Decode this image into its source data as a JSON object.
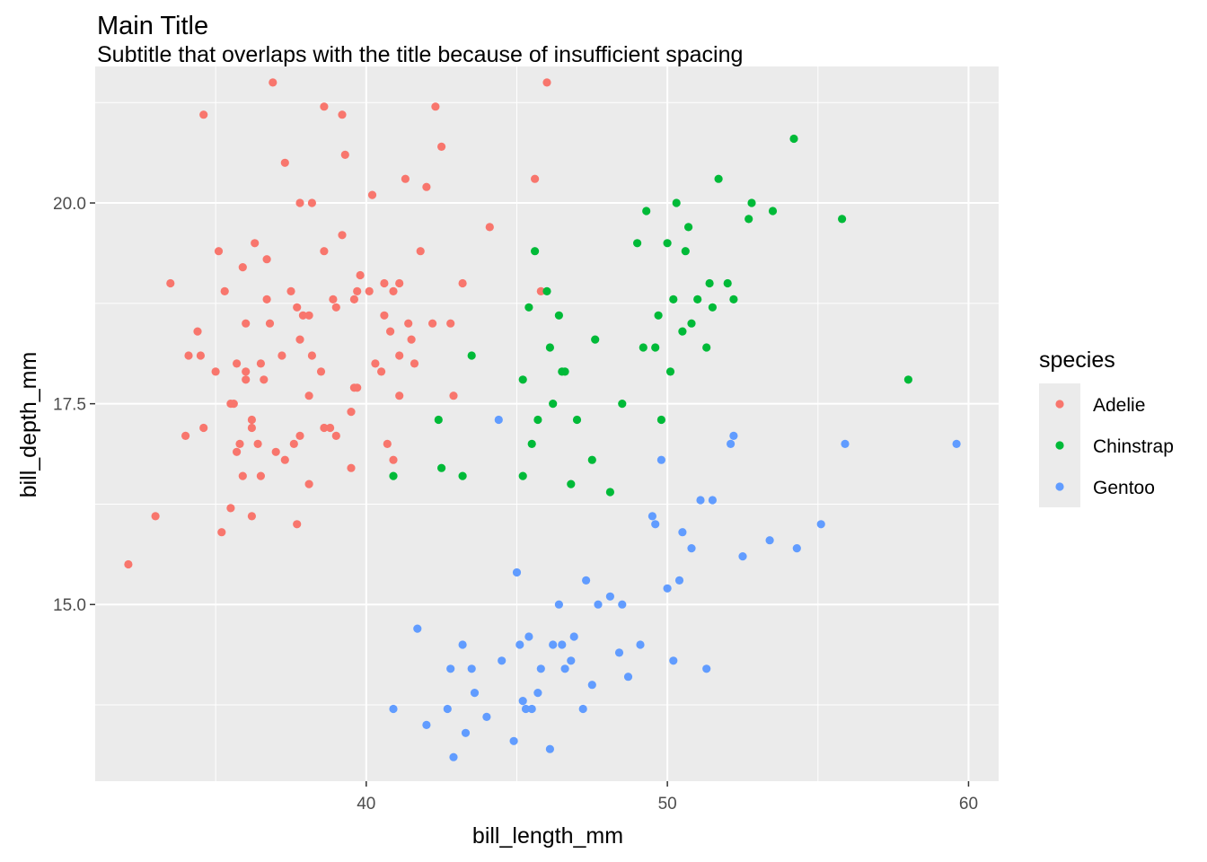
{
  "chart_data": {
    "type": "scatter",
    "title": "Main Title",
    "subtitle": "Subtitle that overlaps with the title because of insufficient spacing",
    "xlabel": "bill_length_mm",
    "ylabel": "bill_depth_mm",
    "xlim": [
      31.0,
      61.0
    ],
    "ylim": [
      12.8,
      21.7
    ],
    "x_ticks": [
      40,
      50,
      60
    ],
    "x_tick_labels": [
      "40",
      "50",
      "60"
    ],
    "y_ticks": [
      15.0,
      17.5,
      20.0
    ],
    "y_tick_labels": [
      "15.0",
      "17.5",
      "20.0"
    ],
    "grid": true,
    "legend": {
      "title": "species",
      "position": "right"
    },
    "series": [
      {
        "name": "Adelie",
        "color": "#F8766D",
        "points": [
          [
            32.1,
            15.5
          ],
          [
            33.0,
            16.1
          ],
          [
            33.5,
            19.0
          ],
          [
            34.0,
            17.1
          ],
          [
            34.1,
            18.1
          ],
          [
            34.4,
            18.4
          ],
          [
            34.5,
            18.1
          ],
          [
            34.6,
            21.1
          ],
          [
            34.6,
            17.2
          ],
          [
            35.0,
            17.9
          ],
          [
            35.1,
            19.4
          ],
          [
            35.2,
            15.9
          ],
          [
            35.3,
            18.9
          ],
          [
            35.5,
            16.2
          ],
          [
            35.5,
            17.5
          ],
          [
            35.6,
            17.5
          ],
          [
            35.7,
            16.9
          ],
          [
            35.7,
            18.0
          ],
          [
            35.8,
            17.0
          ],
          [
            35.9,
            16.6
          ],
          [
            35.9,
            19.2
          ],
          [
            36.0,
            17.8
          ],
          [
            36.0,
            18.5
          ],
          [
            36.0,
            17.9
          ],
          [
            36.2,
            16.1
          ],
          [
            36.2,
            17.2
          ],
          [
            36.2,
            17.3
          ],
          [
            36.3,
            19.5
          ],
          [
            36.4,
            17.0
          ],
          [
            36.5,
            16.6
          ],
          [
            36.5,
            18.0
          ],
          [
            36.6,
            17.8
          ],
          [
            36.7,
            19.3
          ],
          [
            36.7,
            18.8
          ],
          [
            36.8,
            18.5
          ],
          [
            36.9,
            21.5
          ],
          [
            37.0,
            16.9
          ],
          [
            37.2,
            18.1
          ],
          [
            37.3,
            16.8
          ],
          [
            37.3,
            20.5
          ],
          [
            37.5,
            18.9
          ],
          [
            37.6,
            17.0
          ],
          [
            37.7,
            16.0
          ],
          [
            37.7,
            18.7
          ],
          [
            37.8,
            17.1
          ],
          [
            37.8,
            18.3
          ],
          [
            37.8,
            20.0
          ],
          [
            37.9,
            18.6
          ],
          [
            38.1,
            16.5
          ],
          [
            38.1,
            17.6
          ],
          [
            38.1,
            18.6
          ],
          [
            38.2,
            18.1
          ],
          [
            38.2,
            20.0
          ],
          [
            38.5,
            17.9
          ],
          [
            38.6,
            21.2
          ],
          [
            38.6,
            17.2
          ],
          [
            38.6,
            19.4
          ],
          [
            38.8,
            17.2
          ],
          [
            38.9,
            18.8
          ],
          [
            39.0,
            17.1
          ],
          [
            39.0,
            18.7
          ],
          [
            39.2,
            21.1
          ],
          [
            39.2,
            19.6
          ],
          [
            39.3,
            20.6
          ],
          [
            39.5,
            16.7
          ],
          [
            39.5,
            17.4
          ],
          [
            39.6,
            17.7
          ],
          [
            39.6,
            18.8
          ],
          [
            39.7,
            17.7
          ],
          [
            39.7,
            18.9
          ],
          [
            39.8,
            19.1
          ],
          [
            40.1,
            18.9
          ],
          [
            40.2,
            20.1
          ],
          [
            40.3,
            18.0
          ],
          [
            40.5,
            17.9
          ],
          [
            40.6,
            18.6
          ],
          [
            40.6,
            19.0
          ],
          [
            40.7,
            17.0
          ],
          [
            40.8,
            18.4
          ],
          [
            40.9,
            16.8
          ],
          [
            40.9,
            18.9
          ],
          [
            41.1,
            17.6
          ],
          [
            41.1,
            18.1
          ],
          [
            41.1,
            19.0
          ],
          [
            41.3,
            20.3
          ],
          [
            41.4,
            18.5
          ],
          [
            41.5,
            18.3
          ],
          [
            41.6,
            18.0
          ],
          [
            41.8,
            19.4
          ],
          [
            42.0,
            20.2
          ],
          [
            42.2,
            18.5
          ],
          [
            42.3,
            21.2
          ],
          [
            42.5,
            20.7
          ],
          [
            42.8,
            18.5
          ],
          [
            42.9,
            17.6
          ],
          [
            43.2,
            19.0
          ],
          [
            44.1,
            19.7
          ],
          [
            45.6,
            20.3
          ],
          [
            45.8,
            18.9
          ],
          [
            46.0,
            21.5
          ]
        ]
      },
      {
        "name": "Chinstrap",
        "color": "#00BA38",
        "points": [
          [
            40.9,
            16.6
          ],
          [
            42.4,
            17.3
          ],
          [
            42.5,
            16.7
          ],
          [
            43.2,
            16.6
          ],
          [
            43.5,
            18.1
          ],
          [
            45.2,
            17.8
          ],
          [
            45.2,
            16.6
          ],
          [
            45.4,
            18.7
          ],
          [
            45.5,
            17.0
          ],
          [
            45.6,
            19.4
          ],
          [
            45.7,
            17.3
          ],
          [
            46.0,
            18.9
          ],
          [
            46.1,
            18.2
          ],
          [
            46.2,
            17.5
          ],
          [
            46.4,
            18.6
          ],
          [
            46.5,
            17.9
          ],
          [
            46.6,
            17.9
          ],
          [
            46.8,
            16.5
          ],
          [
            47.0,
            17.3
          ],
          [
            47.5,
            16.8
          ],
          [
            47.6,
            18.3
          ],
          [
            48.1,
            16.4
          ],
          [
            48.5,
            17.5
          ],
          [
            49.0,
            19.5
          ],
          [
            49.2,
            18.2
          ],
          [
            49.3,
            19.9
          ],
          [
            49.6,
            18.2
          ],
          [
            49.7,
            18.6
          ],
          [
            49.8,
            17.3
          ],
          [
            50.0,
            19.5
          ],
          [
            50.1,
            17.9
          ],
          [
            50.2,
            18.8
          ],
          [
            50.3,
            20.0
          ],
          [
            50.5,
            18.4
          ],
          [
            50.6,
            19.4
          ],
          [
            50.7,
            19.7
          ],
          [
            50.8,
            18.5
          ],
          [
            51.0,
            18.8
          ],
          [
            51.3,
            18.2
          ],
          [
            51.4,
            19.0
          ],
          [
            51.5,
            18.7
          ],
          [
            51.7,
            20.3
          ],
          [
            52.0,
            19.0
          ],
          [
            52.2,
            18.8
          ],
          [
            52.7,
            19.8
          ],
          [
            52.8,
            20.0
          ],
          [
            53.5,
            19.9
          ],
          [
            54.2,
            20.8
          ],
          [
            55.8,
            19.8
          ],
          [
            58.0,
            17.8
          ]
        ]
      },
      {
        "name": "Gentoo",
        "color": "#619CFF",
        "points": [
          [
            40.9,
            13.7
          ],
          [
            41.7,
            14.7
          ],
          [
            42.0,
            13.5
          ],
          [
            42.7,
            13.7
          ],
          [
            42.8,
            14.2
          ],
          [
            42.9,
            13.1
          ],
          [
            43.2,
            14.5
          ],
          [
            43.3,
            13.4
          ],
          [
            43.5,
            14.2
          ],
          [
            43.6,
            13.9
          ],
          [
            44.0,
            13.6
          ],
          [
            44.4,
            17.3
          ],
          [
            44.5,
            14.3
          ],
          [
            44.9,
            13.3
          ],
          [
            45.0,
            15.4
          ],
          [
            45.1,
            14.5
          ],
          [
            45.2,
            13.8
          ],
          [
            45.3,
            13.7
          ],
          [
            45.4,
            14.6
          ],
          [
            45.5,
            13.7
          ],
          [
            45.7,
            13.9
          ],
          [
            45.8,
            14.2
          ],
          [
            46.1,
            13.2
          ],
          [
            46.2,
            14.5
          ],
          [
            46.4,
            15.0
          ],
          [
            46.5,
            14.5
          ],
          [
            46.6,
            14.2
          ],
          [
            46.8,
            14.3
          ],
          [
            46.9,
            14.6
          ],
          [
            47.2,
            13.7
          ],
          [
            47.3,
            15.3
          ],
          [
            47.5,
            14.0
          ],
          [
            47.7,
            15.0
          ],
          [
            48.1,
            15.1
          ],
          [
            48.4,
            14.4
          ],
          [
            48.5,
            15.0
          ],
          [
            48.7,
            14.1
          ],
          [
            49.1,
            14.5
          ],
          [
            49.5,
            16.1
          ],
          [
            49.6,
            16.0
          ],
          [
            49.8,
            16.8
          ],
          [
            50.0,
            15.2
          ],
          [
            50.2,
            14.3
          ],
          [
            50.4,
            15.3
          ],
          [
            50.5,
            15.9
          ],
          [
            50.8,
            15.7
          ],
          [
            51.1,
            16.3
          ],
          [
            51.3,
            14.2
          ],
          [
            51.5,
            16.3
          ],
          [
            52.1,
            17.0
          ],
          [
            52.2,
            17.1
          ],
          [
            52.5,
            15.6
          ],
          [
            53.4,
            15.8
          ],
          [
            54.3,
            15.7
          ],
          [
            55.1,
            16.0
          ],
          [
            55.9,
            17.0
          ],
          [
            59.6,
            17.0
          ]
        ]
      }
    ]
  }
}
